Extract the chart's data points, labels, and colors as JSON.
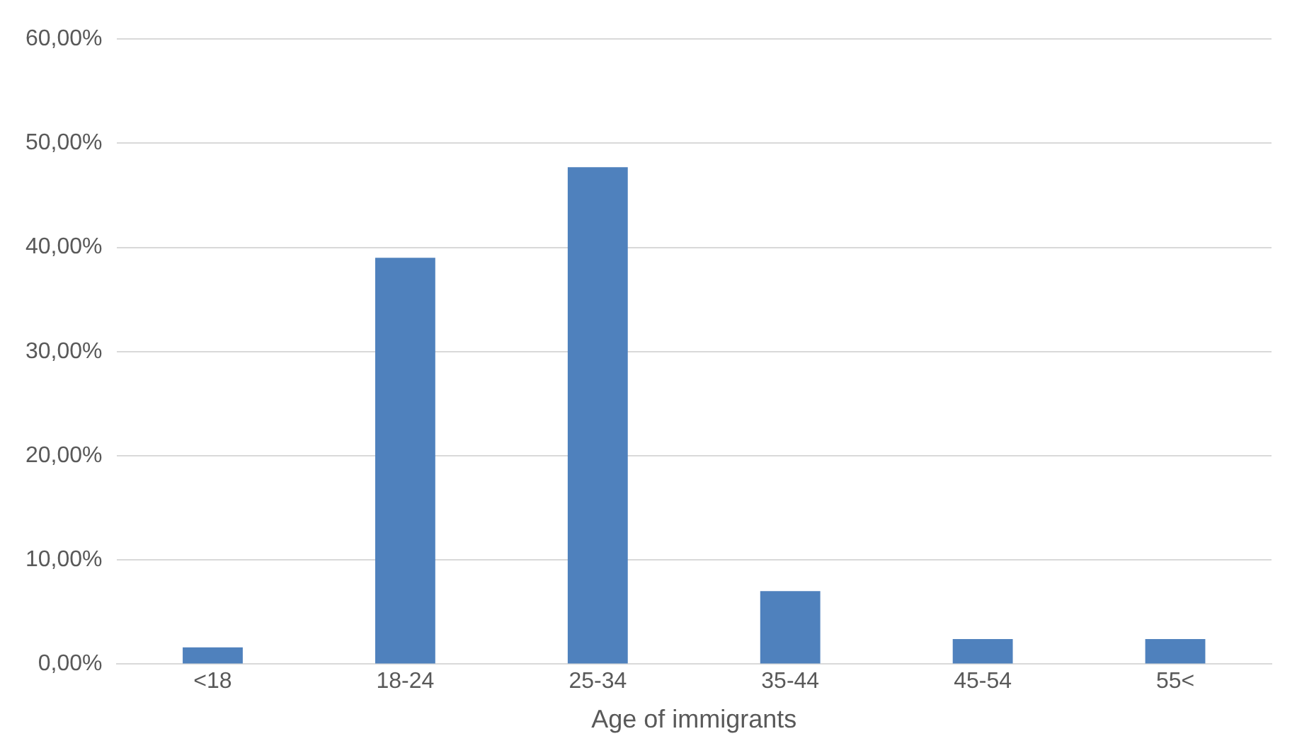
{
  "chart_data": {
    "type": "bar",
    "xlabel": "Age of immigrants",
    "categories": [
      "<18",
      "18-24",
      "25-34",
      "35-44",
      "45-54",
      "55<"
    ],
    "values": [
      1.6,
      39.0,
      47.7,
      7.0,
      2.4,
      2.4
    ],
    "color": "#4f81bd",
    "ylim": [
      0,
      60
    ],
    "yticks": [
      {
        "value": 0,
        "label": "0,00%"
      },
      {
        "value": 10,
        "label": "10,00%"
      },
      {
        "value": 20,
        "label": "20,00%"
      },
      {
        "value": 30,
        "label": "30,00%"
      },
      {
        "value": 40,
        "label": "40,00%"
      },
      {
        "value": 50,
        "label": "50,00%"
      },
      {
        "value": 60,
        "label": "60,00%"
      }
    ],
    "grid": "y",
    "legend": false
  }
}
